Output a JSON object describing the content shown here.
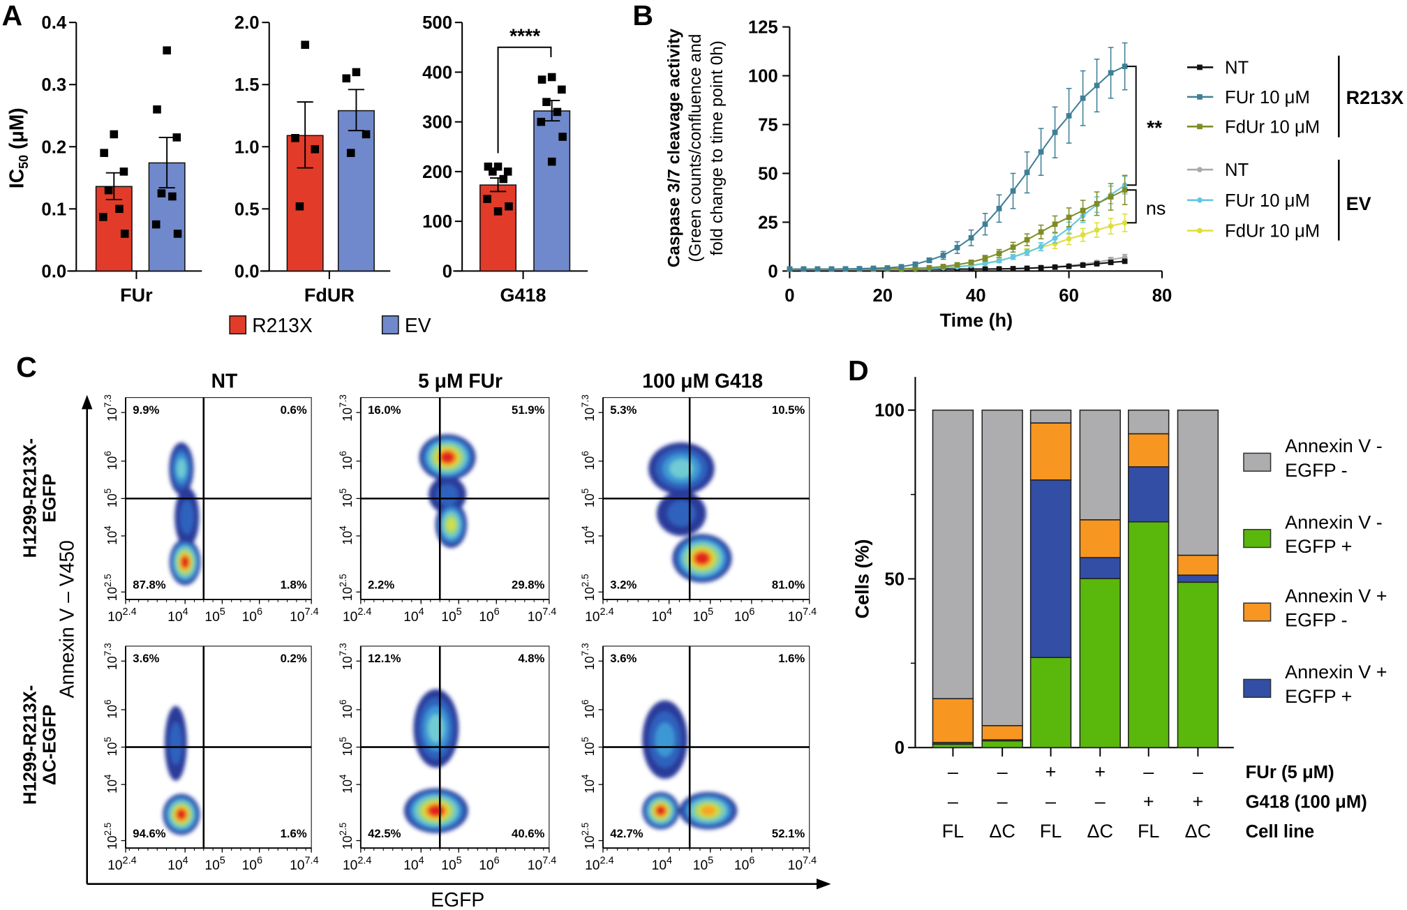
{
  "panel_labels": {
    "a": "A",
    "b": "B",
    "c": "C",
    "d": "D"
  },
  "colors": {
    "r213x": "#e33b2a",
    "ev": "#7089cc",
    "annexin_neg_egfp_neg": "#adadaf",
    "annexin_neg_egfp_pos": "#5ab70c",
    "annexin_pos_egfp_neg": "#f79621",
    "annexin_pos_egfp_pos": "#334ea5"
  },
  "panel_a": {
    "ylabel": {
      "main": "IC",
      "sub": "50",
      "unit": " (μM)"
    },
    "legend": [
      {
        "name": "R213X",
        "color": "#e33b2a"
      },
      {
        "name": "EV",
        "color": "#7089cc"
      }
    ],
    "significance": "****"
  },
  "chart_data": [
    {
      "type": "bar",
      "panel": "A",
      "category": "FUr",
      "ylim": [
        0,
        0.4
      ],
      "yticks": [
        "0.0",
        "0.1",
        "0.2",
        "0.3",
        "0.4"
      ],
      "ytick_values": [
        0,
        0.1,
        0.2,
        0.3,
        0.4
      ],
      "series": [
        {
          "name": "R213X",
          "mean": 0.136,
          "err": [
            0.115,
            0.158
          ],
          "points": [
            0.22,
            0.19,
            0.16,
            0.13,
            0.1,
            0.087,
            0.06
          ]
        },
        {
          "name": "EV",
          "mean": 0.174,
          "err": [
            0.134,
            0.215
          ],
          "points": [
            0.355,
            0.26,
            0.215,
            0.125,
            0.12,
            0.075,
            0.06
          ]
        }
      ]
    },
    {
      "type": "bar",
      "panel": "A",
      "category": "FdUR",
      "ylim": [
        0,
        2.0
      ],
      "yticks": [
        "0.0",
        "0.5",
        "1.0",
        "1.5",
        "2.0"
      ],
      "ytick_values": [
        0,
        0.5,
        1.0,
        1.5,
        2.0
      ],
      "series": [
        {
          "name": "R213X",
          "mean": 1.09,
          "err": [
            0.83,
            1.36
          ],
          "points": [
            1.82,
            1.07,
            0.98,
            0.52
          ]
        },
        {
          "name": "EV",
          "mean": 1.29,
          "err": [
            1.13,
            1.46
          ],
          "points": [
            1.6,
            1.55,
            1.1,
            0.95
          ]
        }
      ]
    },
    {
      "type": "bar",
      "panel": "A",
      "category": "G418",
      "ylim": [
        0,
        500
      ],
      "yticks": [
        "0",
        "100",
        "200",
        "300",
        "400",
        "500"
      ],
      "ytick_values": [
        0,
        100,
        200,
        300,
        400,
        500
      ],
      "series": [
        {
          "name": "R213X",
          "mean": 173,
          "err": [
            160,
            187
          ],
          "points": [
            210,
            210,
            200,
            200,
            185,
            145,
            130,
            120
          ]
        },
        {
          "name": "EV",
          "mean": 322,
          "err": [
            302,
            343
          ],
          "points": [
            390,
            385,
            365,
            340,
            320,
            300,
            270,
            220
          ]
        }
      ]
    },
    {
      "type": "line",
      "panel": "B",
      "xlabel": "Time (h)",
      "ylabel": [
        "Caspase 3/7 cleavage activity",
        "(Green counts/confluence and",
        "fold change to time point 0h)"
      ],
      "xlim": [
        0,
        80
      ],
      "xticks": [
        "0",
        "20",
        "40",
        "60",
        "80"
      ],
      "xtick_values": [
        0,
        20,
        40,
        60,
        80
      ],
      "ylim": [
        0,
        125
      ],
      "yticks": [
        "0",
        "25",
        "50",
        "75",
        "100",
        "125"
      ],
      "ytick_values": [
        0,
        25,
        50,
        75,
        100,
        125
      ],
      "x": [
        0,
        3,
        6,
        9,
        12,
        15,
        18,
        21,
        24,
        27,
        30,
        33,
        36,
        39,
        42,
        45,
        48,
        51,
        54,
        57,
        60,
        63,
        66,
        69,
        72
      ],
      "groups": [
        "R213X",
        "EV"
      ],
      "series": [
        {
          "name": "NT",
          "group": "R213X",
          "color": "#111111",
          "marker": "square",
          "values": [
            1,
            1,
            1,
            1,
            1,
            1,
            1,
            1,
            1,
            1,
            1,
            1,
            1,
            1,
            1,
            1.1,
            1.2,
            1.4,
            1.7,
            2,
            2.4,
            3,
            3.7,
            4.4,
            5
          ],
          "err": [
            0,
            0,
            0,
            0,
            0,
            0,
            0,
            0,
            0,
            0,
            0,
            0,
            0,
            0,
            0,
            0.1,
            0.1,
            0.2,
            0.2,
            0.3,
            0.3,
            0.4,
            0.5,
            0.5,
            0.6
          ]
        },
        {
          "name": "FUr 10 μM",
          "group": "R213X",
          "color": "#3e7f96",
          "marker": "square",
          "values": [
            1,
            1,
            1,
            1,
            1.1,
            1.2,
            1.4,
            1.6,
            2.2,
            3.5,
            5.5,
            8,
            12,
            17,
            24,
            32,
            41,
            50.5,
            61,
            71,
            79.5,
            88.5,
            95,
            101.5,
            104.8
          ],
          "err": [
            0,
            0,
            0,
            0,
            0,
            0.2,
            0.3,
            0.4,
            0.5,
            0.8,
            1.2,
            2,
            3,
            4,
            5.5,
            7,
            9,
            10.5,
            12,
            13,
            14,
            14,
            13.5,
            13,
            12
          ]
        },
        {
          "name": "FdUr 10 μM",
          "group": "R213X",
          "color": "#7f8c26",
          "marker": "square",
          "values": [
            1,
            1,
            1,
            1,
            1,
            1,
            1,
            1.1,
            1.2,
            1.4,
            1.7,
            2.3,
            3.2,
            4.5,
            6.5,
            9,
            12.2,
            16,
            20,
            24,
            27.5,
            31,
            34.5,
            38,
            41.5
          ],
          "err": [
            0,
            0,
            0,
            0,
            0,
            0,
            0,
            0,
            0,
            0.3,
            0.4,
            0.5,
            0.7,
            1,
            1.5,
            2,
            2.5,
            3,
            3.5,
            4.2,
            4.8,
            5.2,
            6,
            6.8,
            7.5
          ]
        },
        {
          "name": "NT",
          "group": "EV",
          "color": "#a9a9a9",
          "marker": "circle",
          "values": [
            1,
            1,
            1,
            1,
            1,
            1,
            1,
            1,
            1,
            1,
            1,
            1,
            1,
            1,
            1,
            1.1,
            1.2,
            1.5,
            1.8,
            2.2,
            2.8,
            3.5,
            4.5,
            5.8,
            7
          ],
          "err": [
            0,
            0,
            0,
            0,
            0,
            0,
            0,
            0,
            0,
            0,
            0,
            0,
            0,
            0,
            0,
            0.1,
            0.2,
            0.2,
            0.3,
            0.4,
            0.5,
            0.7,
            0.9,
            1.2,
            1.5
          ]
        },
        {
          "name": "FUr 10 μM",
          "group": "EV",
          "color": "#62c6e6",
          "marker": "circle",
          "values": [
            1,
            1,
            1,
            1,
            1,
            1,
            1,
            1,
            1.1,
            1.2,
            1.3,
            1.6,
            2.1,
            2.8,
            3.8,
            5.2,
            7.2,
            9.5,
            12.5,
            16.8,
            22,
            28.3,
            34,
            39,
            44
          ],
          "err": [
            0,
            0,
            0,
            0,
            0,
            0,
            0,
            0,
            0,
            0,
            0.2,
            0.3,
            0.4,
            0.5,
            0.7,
            0.9,
            1.2,
            1.5,
            2,
            2.5,
            3,
            3.5,
            4,
            4.5,
            4.5
          ]
        },
        {
          "name": "FdUr 10 μM",
          "group": "EV",
          "color": "#dede3a",
          "marker": "circle",
          "values": [
            1,
            1,
            1,
            1,
            1,
            1,
            1,
            1,
            1.1,
            1.2,
            1.3,
            1.7,
            2.3,
            3,
            4,
            5.3,
            7.2,
            9.8,
            12.3,
            14,
            16.5,
            18.5,
            21,
            23,
            24.7
          ],
          "err": [
            0,
            0,
            0,
            0,
            0,
            0,
            0,
            0,
            0,
            0,
            0.3,
            0.4,
            0.5,
            0.7,
            0.8,
            1,
            1.3,
            1.7,
            2,
            2.5,
            3,
            3.3,
            3.7,
            4,
            4.5
          ]
        }
      ],
      "annotations": [
        {
          "text": "**",
          "between": [
            "FUr 10 μM R213X",
            "FUr 10 μM EV"
          ]
        },
        {
          "text": "ns",
          "between": [
            "FdUr 10 μM R213X",
            "FdUr 10 μM EV"
          ]
        }
      ]
    },
    {
      "type": "scatter",
      "panel": "C",
      "subtype": "flow-cytometry density plots",
      "xlabel": "EGFP",
      "ylabel": "Annexin V – V450",
      "columns": [
        "NT",
        "5 μM FUr",
        "100 μM G418"
      ],
      "rows": [
        [
          "H1299-R213X-",
          "EGFP"
        ],
        [
          "H1299-R213X-",
          "ΔC-EGFP"
        ]
      ],
      "x_log_range": [
        2.4,
        7.4
      ],
      "y_log_range": [
        2.3,
        7.7
      ],
      "xticks": [
        {
          "base": "10",
          "exp": "2.4"
        },
        {
          "base": "10",
          "exp": "4"
        },
        {
          "base": "10",
          "exp": "5"
        },
        {
          "base": "10",
          "exp": "6"
        },
        {
          "base": "10",
          "exp": "7.4"
        }
      ],
      "yticks": [
        {
          "base": "10",
          "exp": "2.5"
        },
        {
          "base": "10",
          "exp": "4"
        },
        {
          "base": "10",
          "exp": "5"
        },
        {
          "base": "10",
          "exp": "6"
        },
        {
          "base": "10",
          "exp": "7.3"
        }
      ],
      "gate": {
        "x_log": 4.5,
        "y_log": 5
      },
      "quadrants": [
        [
          {
            "ul": "9.9%",
            "ur": "0.6%",
            "ll": "87.8%",
            "lr": "1.8%"
          },
          {
            "ul": "16.0%",
            "ur": "51.9%",
            "ll": "2.2%",
            "lr": "29.8%"
          },
          {
            "ul": "5.3%",
            "ur": "10.5%",
            "ll": "3.2%",
            "lr": "81.0%"
          }
        ],
        [
          {
            "ul": "3.6%",
            "ur": "0.2%",
            "ll": "94.6%",
            "lr": "1.6%"
          },
          {
            "ul": "12.1%",
            "ur": "4.8%",
            "ll": "42.5%",
            "lr": "40.6%"
          },
          {
            "ul": "3.6%",
            "ur": "1.6%",
            "ll": "42.7%",
            "lr": "52.1%"
          }
        ]
      ]
    },
    {
      "type": "bar",
      "panel": "D",
      "stacked": true,
      "ylabel": "Cells (%)",
      "ylim": [
        0,
        100
      ],
      "yticks": [
        "0",
        "50",
        "100"
      ],
      "ytick_values": [
        0,
        50,
        100
      ],
      "categories": [
        "FL",
        "ΔC",
        "FL",
        "ΔC",
        "FL",
        "ΔC"
      ],
      "conditions": [
        {
          "label": "FUr (5 μM)",
          "values": [
            "–",
            "–",
            "+",
            "+",
            "–",
            "–"
          ]
        },
        {
          "label": "G418 (100 μM)",
          "values": [
            "–",
            "–",
            "–",
            "–",
            "+",
            "+"
          ]
        },
        {
          "label": "Cell line",
          "values": [
            "FL",
            "ΔC",
            "FL",
            "ΔC",
            "FL",
            "ΔC"
          ]
        }
      ],
      "series": [
        {
          "name": [
            "Annexin V -",
            "EGFP +"
          ],
          "color": "#5ab70c",
          "values": [
            1.0,
            2.0,
            26.7,
            50.1,
            66.9,
            49.0
          ]
        },
        {
          "name": [
            "Annexin V +",
            "EGFP +"
          ],
          "color": "#334ea5",
          "values": [
            0.5,
            0.3,
            52.6,
            6.2,
            16.3,
            2.1
          ]
        },
        {
          "name": [
            "Annexin V +",
            "EGFP -"
          ],
          "color": "#f79621",
          "values": [
            13.0,
            4.2,
            16.9,
            11.2,
            9.8,
            5.9
          ]
        },
        {
          "name": [
            "Annexin V -",
            "EGFP -"
          ],
          "color": "#adadaf",
          "values": [
            85.5,
            93.5,
            3.8,
            32.5,
            7.0,
            43.0
          ]
        }
      ],
      "legend_order": [
        3,
        0,
        2,
        1
      ],
      "legend": "right"
    }
  ]
}
